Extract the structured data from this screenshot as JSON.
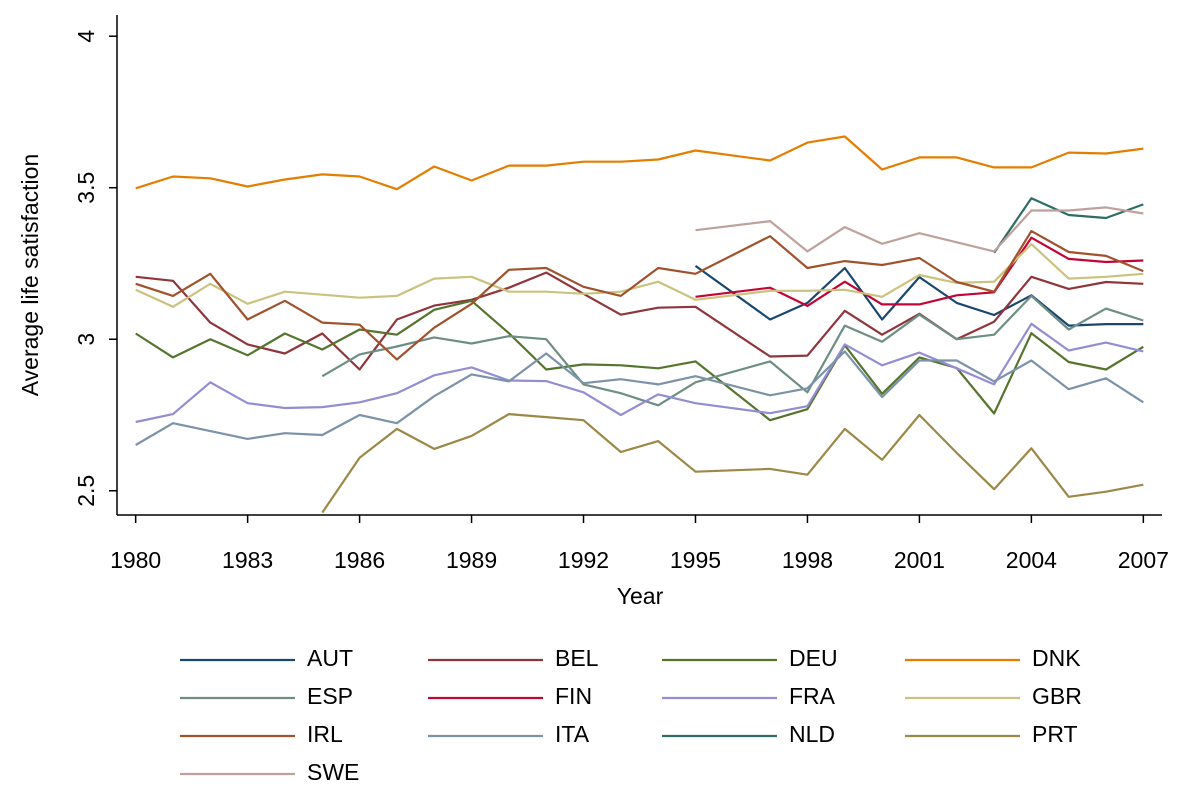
{
  "chart_data": {
    "type": "line",
    "y_label": "Average life satisfaction",
    "x_label": "Year",
    "x": [
      1980,
      1981,
      1982,
      1983,
      1984,
      1985,
      1986,
      1987,
      1988,
      1989,
      1990,
      1991,
      1992,
      1993,
      1994,
      1995,
      1997,
      1998,
      1999,
      2000,
      2001,
      2002,
      2003,
      2004,
      2005,
      2006,
      2007
    ],
    "xlim": [
      1979.5,
      2007.5
    ],
    "xticks": [
      1980,
      1983,
      1986,
      1989,
      1992,
      1995,
      1998,
      2001,
      2004,
      2007
    ],
    "ylim": [
      2.42,
      4.07
    ],
    "yticks": [
      2.5,
      3,
      3.5,
      4
    ],
    "grid": false,
    "legend": "bottom",
    "series": [
      {
        "name": "AUT",
        "color": "#1a476f",
        "values": [
          null,
          null,
          null,
          null,
          null,
          null,
          null,
          null,
          null,
          null,
          null,
          null,
          null,
          null,
          null,
          3.242,
          3.065,
          3.12,
          3.235,
          3.065,
          3.205,
          3.12,
          3.08,
          3.145,
          3.045,
          3.05,
          3.05
        ]
      },
      {
        "name": "BEL",
        "color": "#90353b",
        "values": [
          3.206,
          3.193,
          3.055,
          2.983,
          2.953,
          3.019,
          2.9,
          3.065,
          3.111,
          3.13,
          3.17,
          3.22,
          3.15,
          3.081,
          3.104,
          3.107,
          2.943,
          2.946,
          3.094,
          3.015,
          3.084,
          3.0,
          3.058,
          3.206,
          3.166,
          3.189,
          3.183
        ]
      },
      {
        "name": "DEU",
        "color": "#55752f",
        "values": [
          3.019,
          2.94,
          3.0,
          2.947,
          3.019,
          2.966,
          3.032,
          3.015,
          3.097,
          3.127,
          3.02,
          2.9,
          2.917,
          2.914,
          2.904,
          2.927,
          2.733,
          2.769,
          2.98,
          2.82,
          2.94,
          2.905,
          2.755,
          3.02,
          2.925,
          2.9,
          2.975
        ]
      },
      {
        "name": "DNK",
        "color": "#e37e00",
        "values": [
          3.498,
          3.537,
          3.531,
          3.504,
          3.527,
          3.544,
          3.537,
          3.495,
          3.57,
          3.524,
          3.573,
          3.573,
          3.586,
          3.586,
          3.593,
          3.623,
          3.59,
          3.649,
          3.669,
          3.56,
          3.6,
          3.6,
          3.567,
          3.567,
          3.616,
          3.613,
          3.629
        ]
      },
      {
        "name": "ESP",
        "color": "#6e8e84",
        "values": [
          null,
          null,
          null,
          null,
          null,
          2.878,
          2.95,
          2.976,
          3.006,
          2.986,
          3.01,
          3.0,
          2.851,
          2.822,
          2.782,
          2.858,
          2.927,
          2.825,
          3.045,
          2.992,
          3.081,
          3.0,
          3.015,
          3.143,
          3.032,
          3.101,
          3.062
        ]
      },
      {
        "name": "FIN",
        "color": "#c10534",
        "values": [
          null,
          null,
          null,
          null,
          null,
          null,
          null,
          null,
          null,
          null,
          null,
          null,
          null,
          null,
          null,
          3.14,
          3.17,
          3.11,
          3.19,
          3.115,
          3.115,
          3.145,
          3.155,
          3.335,
          3.265,
          3.255,
          3.26
        ]
      },
      {
        "name": "FRA",
        "color": "#938dd2",
        "values": [
          2.727,
          2.753,
          2.858,
          2.789,
          2.773,
          2.776,
          2.792,
          2.822,
          2.881,
          2.907,
          2.864,
          2.862,
          2.825,
          2.75,
          2.818,
          2.789,
          2.756,
          2.779,
          2.983,
          2.914,
          2.956,
          2.904,
          2.851,
          3.051,
          2.963,
          2.989,
          2.96
        ]
      },
      {
        "name": "GBR",
        "color": "#cac27e",
        "values": [
          3.163,
          3.107,
          3.183,
          3.117,
          3.157,
          3.147,
          3.137,
          3.143,
          3.2,
          3.206,
          3.157,
          3.157,
          3.15,
          3.157,
          3.19,
          3.13,
          3.16,
          3.16,
          3.163,
          3.14,
          3.212,
          3.186,
          3.19,
          3.314,
          3.2,
          3.206,
          3.216
        ]
      },
      {
        "name": "IRL",
        "color": "#a0522d",
        "values": [
          3.183,
          3.143,
          3.216,
          3.065,
          3.127,
          3.055,
          3.048,
          2.933,
          3.038,
          3.117,
          3.229,
          3.235,
          3.173,
          3.143,
          3.235,
          3.216,
          3.34,
          3.235,
          3.258,
          3.245,
          3.268,
          3.189,
          3.157,
          3.357,
          3.288,
          3.275,
          3.225
        ]
      },
      {
        "name": "ITA",
        "color": "#7b92a8",
        "values": [
          2.651,
          2.723,
          2.697,
          2.671,
          2.69,
          2.684,
          2.75,
          2.723,
          2.812,
          2.884,
          2.861,
          2.953,
          2.855,
          2.868,
          2.851,
          2.878,
          2.815,
          2.838,
          2.96,
          2.809,
          2.93,
          2.93,
          2.861,
          2.93,
          2.835,
          2.871,
          2.792
        ]
      },
      {
        "name": "NLD",
        "color": "#2d6d66",
        "values": [
          null,
          null,
          null,
          null,
          null,
          null,
          null,
          null,
          null,
          null,
          null,
          null,
          null,
          null,
          null,
          null,
          null,
          null,
          null,
          null,
          null,
          null,
          3.285,
          3.465,
          3.41,
          3.4,
          3.445
        ]
      },
      {
        "name": "PRT",
        "color": "#9c8847",
        "values": [
          null,
          null,
          null,
          null,
          null,
          2.428,
          2.609,
          2.704,
          2.638,
          2.681,
          2.753,
          2.743,
          2.733,
          2.628,
          2.664,
          2.563,
          2.572,
          2.553,
          2.704,
          2.602,
          2.75,
          2.625,
          2.505,
          2.64,
          2.48,
          2.497,
          2.52
        ]
      },
      {
        "name": "SWE",
        "color": "#bfa19c",
        "values": [
          null,
          null,
          null,
          null,
          null,
          null,
          null,
          null,
          null,
          null,
          null,
          null,
          null,
          null,
          null,
          3.36,
          3.39,
          3.29,
          3.37,
          3.315,
          3.35,
          3.32,
          3.29,
          3.425,
          3.425,
          3.435,
          3.415
        ]
      }
    ]
  }
}
